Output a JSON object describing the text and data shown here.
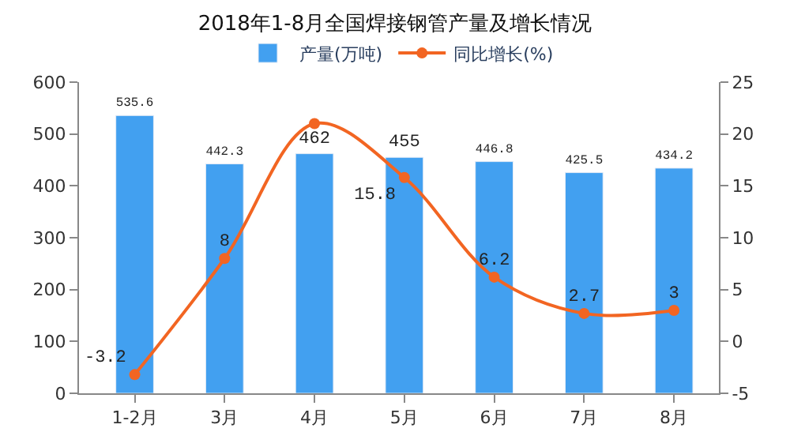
{
  "chart_data": {
    "type": "bar",
    "title": "2018年1-8月全国焊接钢管产量及增长情况",
    "categories": [
      "1-2月",
      "3月",
      "4月",
      "5月",
      "6月",
      "7月",
      "8月"
    ],
    "series": [
      {
        "name": "产量(万吨)",
        "color": "#42a0f0",
        "values": [
          535.6,
          442.3,
          462,
          455,
          446.8,
          425.5,
          434.2
        ],
        "value_labels": [
          "535.6",
          "442.3",
          "462",
          "455",
          "446.8",
          "425.5",
          "434.2"
        ]
      },
      {
        "name": "同比增长(%)",
        "type": "line",
        "axis": "y2",
        "color": "#f26522",
        "values": [
          -3.2,
          8,
          21,
          15.8,
          6.2,
          2.7,
          3
        ],
        "value_labels": [
          "-3.2",
          "8",
          null,
          "15.8",
          "6.2",
          "2.7",
          "3"
        ]
      }
    ],
    "ylim": [
      0,
      600
    ],
    "yticks": [
      0,
      100,
      200,
      300,
      400,
      500,
      600
    ],
    "y2lim": [
      -5,
      25
    ],
    "y2ticks": [
      -5,
      0,
      5,
      10,
      15,
      20,
      25
    ],
    "grid": false,
    "legend": "top",
    "marker": "circle",
    "line_style": "solid"
  }
}
